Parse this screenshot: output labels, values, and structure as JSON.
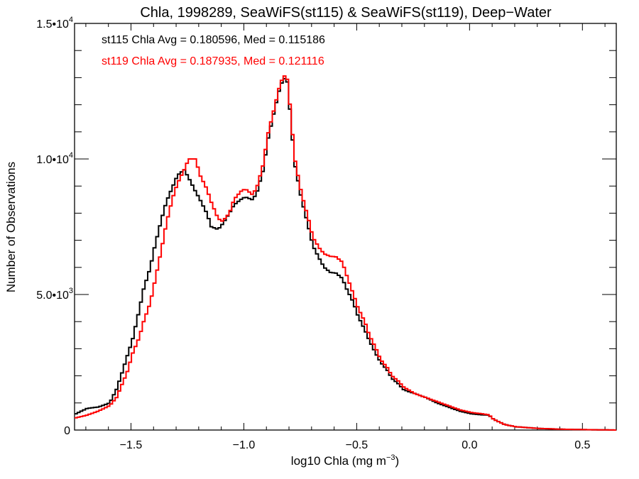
{
  "chart_data": {
    "type": "line",
    "style": "histogram-step",
    "title": "Chla, 1998289, SeaWiFS(st115) & SeaWiFS(st119), Deep−Water",
    "xlabel": "log10 Chla (mg m",
    "xlabel_exp": "−3",
    "xlabel_close": ")",
    "ylabel": "Number of Observations",
    "xlim": [
      -1.75,
      0.65
    ],
    "ylim": [
      0,
      15000
    ],
    "xticks": [
      {
        "value": -1.5,
        "label": "−1.5"
      },
      {
        "value": -1.0,
        "label": "−1.0"
      },
      {
        "value": -0.5,
        "label": "−0.5"
      },
      {
        "value": 0.0,
        "label": "0.0"
      },
      {
        "value": 0.5,
        "label": "0.5"
      }
    ],
    "yticks": [
      {
        "value": 0,
        "mantissa": "0",
        "exp": ""
      },
      {
        "value": 5000,
        "mantissa": "5.0•10",
        "exp": "3"
      },
      {
        "value": 10000,
        "mantissa": "1.0•10",
        "exp": "4"
      },
      {
        "value": 15000,
        "mantissa": "1.5•10",
        "exp": "4"
      }
    ],
    "annotations": [
      {
        "text": "st115 Chla Avg = 0.180596, Med = 0.115186",
        "color": "#000000"
      },
      {
        "text": "st119 Chla Avg = 0.187935, Med = 0.121116",
        "color": "#ff0000"
      }
    ],
    "series": [
      {
        "name": "st115",
        "color": "#000000",
        "points": [
          [
            -1.75,
            600
          ],
          [
            -1.7,
            800
          ],
          [
            -1.65,
            850
          ],
          [
            -1.6,
            1000
          ],
          [
            -1.57,
            1500
          ],
          [
            -1.55,
            2000
          ],
          [
            -1.52,
            2800
          ],
          [
            -1.5,
            3300
          ],
          [
            -1.47,
            4400
          ],
          [
            -1.45,
            5200
          ],
          [
            -1.42,
            6000
          ],
          [
            -1.4,
            6800
          ],
          [
            -1.37,
            7800
          ],
          [
            -1.35,
            8400
          ],
          [
            -1.32,
            9000
          ],
          [
            -1.3,
            9400
          ],
          [
            -1.27,
            9600
          ],
          [
            -1.25,
            9300
          ],
          [
            -1.22,
            8800
          ],
          [
            -1.2,
            8500
          ],
          [
            -1.17,
            8000
          ],
          [
            -1.15,
            7500
          ],
          [
            -1.12,
            7400
          ],
          [
            -1.1,
            7600
          ],
          [
            -1.07,
            8000
          ],
          [
            -1.05,
            8300
          ],
          [
            -1.02,
            8500
          ],
          [
            -1.0,
            8600
          ],
          [
            -0.97,
            8500
          ],
          [
            -0.95,
            8700
          ],
          [
            -0.92,
            9600
          ],
          [
            -0.9,
            10700
          ],
          [
            -0.87,
            11800
          ],
          [
            -0.85,
            12500
          ],
          [
            -0.83,
            13000
          ],
          [
            -0.81,
            12800
          ],
          [
            -0.8,
            11600
          ],
          [
            -0.78,
            9800
          ],
          [
            -0.75,
            8500
          ],
          [
            -0.72,
            7500
          ],
          [
            -0.7,
            6800
          ],
          [
            -0.67,
            6300
          ],
          [
            -0.65,
            6000
          ],
          [
            -0.62,
            5800
          ],
          [
            -0.6,
            5800
          ],
          [
            -0.57,
            5600
          ],
          [
            -0.55,
            5200
          ],
          [
            -0.52,
            4700
          ],
          [
            -0.5,
            4200
          ],
          [
            -0.47,
            3700
          ],
          [
            -0.45,
            3300
          ],
          [
            -0.42,
            2800
          ],
          [
            -0.4,
            2500
          ],
          [
            -0.37,
            2200
          ],
          [
            -0.35,
            1900
          ],
          [
            -0.32,
            1700
          ],
          [
            -0.3,
            1500
          ],
          [
            -0.27,
            1400
          ],
          [
            -0.25,
            1350
          ],
          [
            -0.2,
            1200
          ],
          [
            -0.15,
            1000
          ],
          [
            -0.1,
            850
          ],
          [
            -0.05,
            700
          ],
          [
            0.0,
            600
          ],
          [
            0.05,
            560
          ],
          [
            0.08,
            550
          ],
          [
            0.1,
            400
          ],
          [
            0.15,
            200
          ],
          [
            0.2,
            120
          ],
          [
            0.3,
            60
          ],
          [
            0.4,
            30
          ],
          [
            0.5,
            15
          ],
          [
            0.6,
            5
          ],
          [
            0.65,
            0
          ]
        ]
      },
      {
        "name": "st119",
        "color": "#ff0000",
        "points": [
          [
            -1.75,
            450
          ],
          [
            -1.7,
            550
          ],
          [
            -1.65,
            700
          ],
          [
            -1.6,
            900
          ],
          [
            -1.57,
            1200
          ],
          [
            -1.55,
            1600
          ],
          [
            -1.52,
            2200
          ],
          [
            -1.5,
            2800
          ],
          [
            -1.47,
            3400
          ],
          [
            -1.45,
            4000
          ],
          [
            -1.42,
            4700
          ],
          [
            -1.4,
            5500
          ],
          [
            -1.37,
            6700
          ],
          [
            -1.35,
            7600
          ],
          [
            -1.32,
            8600
          ],
          [
            -1.3,
            9100
          ],
          [
            -1.27,
            9600
          ],
          [
            -1.25,
            10000
          ],
          [
            -1.22,
            10000
          ],
          [
            -1.2,
            9400
          ],
          [
            -1.17,
            8900
          ],
          [
            -1.15,
            8400
          ],
          [
            -1.12,
            7800
          ],
          [
            -1.1,
            7700
          ],
          [
            -1.07,
            8000
          ],
          [
            -1.05,
            8500
          ],
          [
            -1.02,
            8800
          ],
          [
            -1.0,
            8900
          ],
          [
            -0.97,
            8700
          ],
          [
            -0.95,
            8900
          ],
          [
            -0.92,
            9800
          ],
          [
            -0.9,
            10900
          ],
          [
            -0.87,
            11900
          ],
          [
            -0.85,
            12600
          ],
          [
            -0.83,
            13100
          ],
          [
            -0.81,
            12900
          ],
          [
            -0.8,
            11800
          ],
          [
            -0.78,
            10000
          ],
          [
            -0.75,
            8700
          ],
          [
            -0.72,
            7800
          ],
          [
            -0.7,
            7100
          ],
          [
            -0.67,
            6700
          ],
          [
            -0.65,
            6500
          ],
          [
            -0.62,
            6400
          ],
          [
            -0.6,
            6400
          ],
          [
            -0.57,
            6200
          ],
          [
            -0.55,
            5700
          ],
          [
            -0.52,
            5000
          ],
          [
            -0.5,
            4500
          ],
          [
            -0.47,
            4000
          ],
          [
            -0.45,
            3500
          ],
          [
            -0.42,
            3000
          ],
          [
            -0.4,
            2600
          ],
          [
            -0.37,
            2300
          ],
          [
            -0.35,
            2000
          ],
          [
            -0.32,
            1800
          ],
          [
            -0.3,
            1600
          ],
          [
            -0.27,
            1450
          ],
          [
            -0.25,
            1350
          ],
          [
            -0.2,
            1200
          ],
          [
            -0.15,
            1050
          ],
          [
            -0.1,
            900
          ],
          [
            -0.05,
            750
          ],
          [
            0.0,
            650
          ],
          [
            0.05,
            600
          ],
          [
            0.08,
            560
          ],
          [
            0.1,
            400
          ],
          [
            0.15,
            200
          ],
          [
            0.2,
            120
          ],
          [
            0.3,
            60
          ],
          [
            0.4,
            30
          ],
          [
            0.5,
            15
          ],
          [
            0.6,
            5
          ],
          [
            0.65,
            0
          ]
        ]
      }
    ]
  }
}
